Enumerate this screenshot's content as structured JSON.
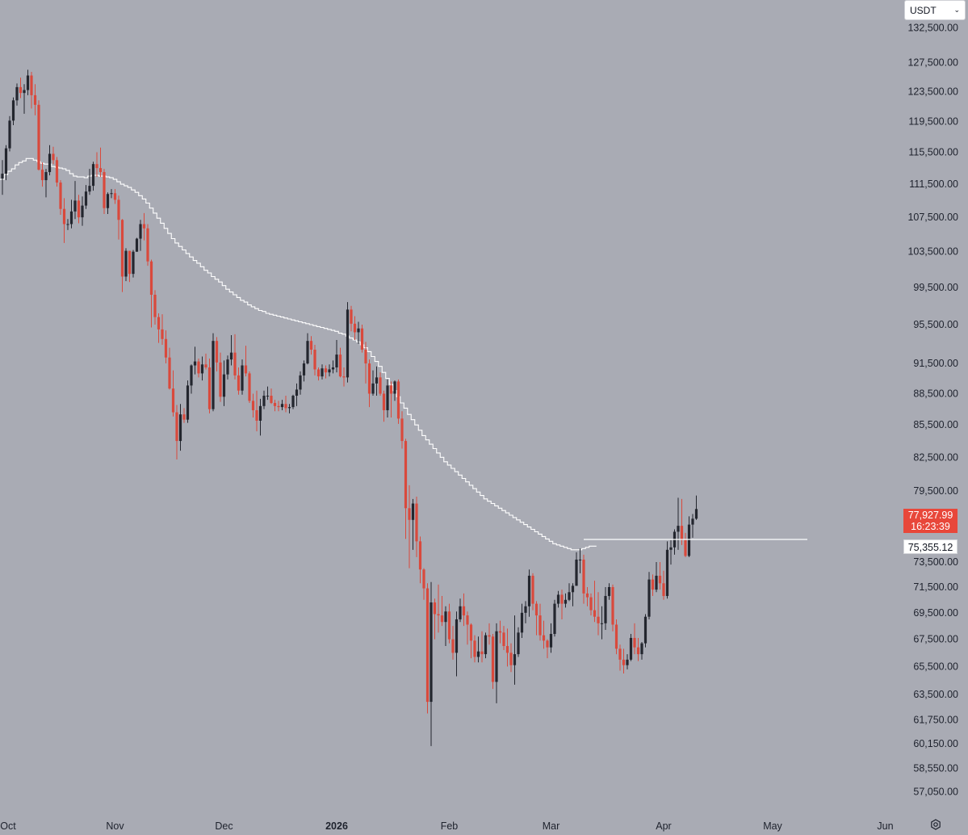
{
  "currency": {
    "label": "USDT"
  },
  "tags": {
    "last_price": "77,927.99",
    "countdown": "16:23:39",
    "level": "75,355.12"
  },
  "colors": {
    "background": "#a9abb4",
    "up": "#23262e",
    "down": "#d9493c",
    "ma_line": "#ffffff",
    "axis_text": "#1e222d"
  },
  "chart_data": {
    "type": "candlestick",
    "title": "",
    "y_scale": "log",
    "ylim": [
      56000,
      135000
    ],
    "y_ticks": [
      "132,500.00",
      "127,500.00",
      "123,500.00",
      "119,500.00",
      "115,500.00",
      "111,500.00",
      "107,500.00",
      "103,500.00",
      "99,500.00",
      "95,500.00",
      "91,500.00",
      "88,500.00",
      "85,500.00",
      "82,500.00",
      "79,500.00",
      "73,500.00",
      "71,500.00",
      "69,500.00",
      "67,500.00",
      "65,500.00",
      "63,500.00",
      "61,750.00",
      "60,150.00",
      "58,550.00",
      "57,050.00"
    ],
    "x_ticks": [
      "Oct",
      "Nov",
      "Dec",
      "2026",
      "Feb",
      "Mar",
      "Apr",
      "May",
      "Jun"
    ],
    "candles": [
      [
        112200,
        114500,
        110200,
        112800
      ],
      [
        112800,
        116400,
        112000,
        116000
      ],
      [
        116000,
        120200,
        115600,
        119600
      ],
      [
        119600,
        122700,
        119000,
        122300
      ],
      [
        122300,
        124600,
        121600,
        124100
      ],
      [
        124100,
        125400,
        122600,
        123300
      ],
      [
        123300,
        124500,
        120500,
        123700
      ],
      [
        123700,
        126500,
        123000,
        125700
      ],
      [
        125700,
        126200,
        121200,
        123000
      ],
      [
        123000,
        124500,
        120300,
        121700
      ],
      [
        121700,
        122300,
        113200,
        113300
      ],
      [
        113300,
        114200,
        111200,
        112000
      ],
      [
        112000,
        113400,
        109900,
        113000
      ],
      [
        113000,
        116400,
        112600,
        115300
      ],
      [
        115300,
        116200,
        114000,
        114500
      ],
      [
        114500,
        114900,
        111200,
        111700
      ],
      [
        111700,
        112000,
        107800,
        108500
      ],
      [
        108500,
        109800,
        104500,
        106700
      ],
      [
        106700,
        107300,
        106000,
        106700
      ],
      [
        106700,
        109600,
        106200,
        108200
      ],
      [
        108200,
        111900,
        107300,
        109500
      ],
      [
        109500,
        110200,
        106800,
        107500
      ],
      [
        107500,
        110000,
        106500,
        108900
      ],
      [
        108900,
        111400,
        108500,
        110600
      ],
      [
        110600,
        113400,
        110200,
        111300
      ],
      [
        111300,
        114300,
        110700,
        114000
      ],
      [
        114000,
        115500,
        112400,
        113500
      ],
      [
        113500,
        116100,
        112400,
        113000
      ],
      [
        113000,
        113400,
        107900,
        108600
      ],
      [
        108600,
        110500,
        107900,
        110300
      ],
      [
        110300,
        110900,
        109800,
        110400
      ],
      [
        110400,
        110900,
        109100,
        109600
      ],
      [
        109600,
        110100,
        104900,
        107200
      ],
      [
        107200,
        107300,
        99000,
        100700
      ],
      [
        100700,
        103900,
        100200,
        103600
      ],
      [
        103600,
        103600,
        100100,
        101000
      ],
      [
        101000,
        103700,
        100600,
        103500
      ],
      [
        103500,
        105100,
        103500,
        105000
      ],
      [
        105000,
        107200,
        103600,
        106700
      ],
      [
        106700,
        108000,
        104800,
        106200
      ],
      [
        106200,
        106700,
        101900,
        102400
      ],
      [
        102400,
        102600,
        95200,
        98700
      ],
      [
        98700,
        99200,
        95500,
        96300
      ],
      [
        96300,
        96700,
        93600,
        95000
      ],
      [
        95000,
        96600,
        93400,
        94000
      ],
      [
        94000,
        94900,
        91500,
        92100
      ],
      [
        92100,
        93100,
        88900,
        89000
      ],
      [
        89000,
        90800,
        86300,
        86700
      ],
      [
        86700,
        87400,
        82300,
        84000
      ],
      [
        84000,
        87500,
        83100,
        86500
      ],
      [
        86500,
        87100,
        85700,
        86000
      ],
      [
        86000,
        89800,
        85700,
        89300
      ],
      [
        89300,
        91400,
        88500,
        91300
      ],
      [
        91300,
        93200,
        90400,
        91700
      ],
      [
        91700,
        92000,
        90100,
        90500
      ],
      [
        90500,
        92200,
        89800,
        91400
      ],
      [
        91400,
        92500,
        90900,
        91100
      ],
      [
        91100,
        92000,
        86600,
        87000
      ],
      [
        87000,
        94600,
        86800,
        93800
      ],
      [
        93800,
        94200,
        90700,
        91600
      ],
      [
        91600,
        92600,
        87700,
        88200
      ],
      [
        88200,
        91800,
        87300,
        90400
      ],
      [
        90400,
        92300,
        89900,
        91900
      ],
      [
        91900,
        94400,
        91300,
        92600
      ],
      [
        92600,
        94500,
        89900,
        90300
      ],
      [
        90300,
        91100,
        88400,
        88800
      ],
      [
        88800,
        91900,
        88400,
        91300
      ],
      [
        91300,
        93300,
        90200,
        90500
      ],
      [
        90500,
        90700,
        87600,
        87800
      ],
      [
        87800,
        88500,
        86200,
        86900
      ],
      [
        86900,
        88800,
        84900,
        85900
      ],
      [
        85900,
        88000,
        84500,
        87300
      ],
      [
        87300,
        88800,
        87000,
        88300
      ],
      [
        88300,
        89200,
        87900,
        88300
      ],
      [
        88300,
        89000,
        87500,
        87600
      ],
      [
        87600,
        87900,
        86800,
        87300
      ],
      [
        87300,
        87800,
        86800,
        87200
      ],
      [
        87200,
        87900,
        86900,
        87500
      ],
      [
        87500,
        88300,
        86700,
        87100
      ],
      [
        87100,
        87500,
        86600,
        87200
      ],
      [
        87200,
        88400,
        87000,
        88300
      ],
      [
        88300,
        89500,
        87300,
        88900
      ],
      [
        88900,
        90700,
        88400,
        90300
      ],
      [
        90300,
        91800,
        89700,
        91500
      ],
      [
        91500,
        94600,
        91400,
        93800
      ],
      [
        93800,
        94300,
        92400,
        92900
      ],
      [
        92900,
        93400,
        90300,
        90900
      ],
      [
        90900,
        91100,
        89800,
        90200
      ],
      [
        90200,
        91400,
        89900,
        91000
      ],
      [
        91000,
        91300,
        90000,
        90600
      ],
      [
        90600,
        91400,
        90200,
        90900
      ],
      [
        90900,
        91800,
        90500,
        91100
      ],
      [
        91100,
        93900,
        90600,
        92400
      ],
      [
        92400,
        93100,
        90100,
        90200
      ],
      [
        90200,
        91100,
        89200,
        90100
      ],
      [
        90100,
        97900,
        89600,
        97100
      ],
      [
        97100,
        97500,
        94800,
        95600
      ],
      [
        95600,
        96400,
        93900,
        94700
      ],
      [
        94700,
        95800,
        93500,
        95100
      ],
      [
        95100,
        95500,
        92600,
        92900
      ],
      [
        92900,
        93700,
        89500,
        91500
      ],
      [
        91500,
        91900,
        87200,
        88500
      ],
      [
        88500,
        90800,
        88300,
        89500
      ],
      [
        89500,
        91200,
        88300,
        90100
      ],
      [
        90100,
        90600,
        88300,
        88500
      ],
      [
        88500,
        88800,
        85800,
        86900
      ],
      [
        86900,
        89900,
        86200,
        89300
      ],
      [
        89300,
        89700,
        86200,
        88500
      ],
      [
        88500,
        89800,
        87800,
        89700
      ],
      [
        89700,
        89900,
        85600,
        86100
      ],
      [
        86100,
        86800,
        83300,
        84000
      ],
      [
        84000,
        84200,
        75400,
        78000
      ],
      [
        78000,
        80000,
        73000,
        77000
      ],
      [
        77000,
        78800,
        74500,
        78400
      ],
      [
        78400,
        79000,
        73900,
        75200
      ],
      [
        75200,
        75600,
        71800,
        72900
      ],
      [
        72900,
        73000,
        70500,
        71400
      ],
      [
        71400,
        71800,
        62200,
        63000
      ],
      [
        63000,
        71900,
        60000,
        70300
      ],
      [
        70300,
        70600,
        67500,
        69400
      ],
      [
        69400,
        71700,
        68000,
        69300
      ],
      [
        69300,
        70800,
        68500,
        68800
      ],
      [
        68800,
        70000,
        67000,
        69600
      ],
      [
        69600,
        70200,
        67200,
        67500
      ],
      [
        67500,
        68500,
        66000,
        66500
      ],
      [
        66500,
        69600,
        64800,
        69000
      ],
      [
        69000,
        70600,
        68800,
        70000
      ],
      [
        70000,
        71000,
        68500,
        69300
      ],
      [
        69300,
        69600,
        67100,
        68600
      ],
      [
        68600,
        68700,
        66100,
        67400
      ],
      [
        67400,
        67800,
        65800,
        66200
      ],
      [
        66200,
        67700,
        65800,
        66600
      ],
      [
        66600,
        68100,
        65800,
        66400
      ],
      [
        66400,
        68000,
        66100,
        67800
      ],
      [
        67800,
        68700,
        67100,
        67700
      ],
      [
        67700,
        67900,
        63900,
        64400
      ],
      [
        64400,
        68700,
        62900,
        68100
      ],
      [
        68100,
        68900,
        67200,
        68000
      ],
      [
        68000,
        68500,
        66700,
        67000
      ],
      [
        67000,
        68300,
        65500,
        66500
      ],
      [
        66500,
        67200,
        65100,
        65600
      ],
      [
        65600,
        69300,
        64200,
        66400
      ],
      [
        66400,
        68400,
        66200,
        68000
      ],
      [
        68000,
        70200,
        67600,
        69500
      ],
      [
        69500,
        70400,
        68700,
        70000
      ],
      [
        70000,
        72900,
        69200,
        72400
      ],
      [
        72400,
        72600,
        69700,
        70200
      ],
      [
        70200,
        70400,
        67800,
        69300
      ],
      [
        69300,
        70200,
        67400,
        67800
      ],
      [
        67800,
        68900,
        66800,
        67400
      ],
      [
        67400,
        67500,
        66100,
        66900
      ],
      [
        66900,
        68700,
        66500,
        67900
      ],
      [
        67900,
        70500,
        67700,
        70200
      ],
      [
        70200,
        71200,
        69900,
        70900
      ],
      [
        70900,
        71300,
        69000,
        70200
      ],
      [
        70200,
        71000,
        69900,
        70500
      ],
      [
        70500,
        71800,
        70400,
        71100
      ],
      [
        71100,
        71800,
        70000,
        71600
      ],
      [
        71600,
        74300,
        71600,
        73700
      ],
      [
        73700,
        74600,
        72600,
        73700
      ],
      [
        73700,
        74100,
        70200,
        71000
      ],
      [
        71000,
        71500,
        70000,
        70700
      ],
      [
        70700,
        71000,
        69300,
        69700
      ],
      [
        69700,
        72000,
        68800,
        69200
      ],
      [
        69200,
        71100,
        67800,
        68700
      ],
      [
        68700,
        70000,
        67500,
        68700
      ],
      [
        68700,
        71500,
        68200,
        70800
      ],
      [
        70800,
        71800,
        70500,
        71500
      ],
      [
        71500,
        71700,
        68100,
        68600
      ],
      [
        68600,
        69000,
        66400,
        66800
      ],
      [
        66800,
        67100,
        65200,
        66000
      ],
      [
        66000,
        66800,
        65000,
        65600
      ],
      [
        65600,
        66400,
        65300,
        66000
      ],
      [
        66000,
        67900,
        65900,
        67600
      ],
      [
        67600,
        68700,
        66400,
        66900
      ],
      [
        66900,
        67600,
        65900,
        66400
      ],
      [
        66400,
        67300,
        66000,
        67200
      ],
      [
        67200,
        69400,
        66900,
        69200
      ],
      [
        69200,
        72700,
        69000,
        72100
      ],
      [
        72100,
        72500,
        70800,
        71300
      ],
      [
        71300,
        73500,
        71100,
        72400
      ],
      [
        72400,
        73500,
        71300,
        71800
      ],
      [
        71800,
        72800,
        70500,
        70800
      ],
      [
        70800,
        75200,
        70600,
        74500
      ],
      [
        74500,
        75300,
        73300,
        74700
      ],
      [
        74700,
        76200,
        74100,
        76000
      ],
      [
        76000,
        78900,
        74500,
        76500
      ],
      [
        76500,
        78800,
        74900,
        75300
      ],
      [
        75300,
        75900,
        73900,
        74000
      ],
      [
        74000,
        77300,
        73900,
        76600
      ],
      [
        76600,
        77500,
        75500,
        77100
      ],
      [
        77100,
        79100,
        77000,
        77928
      ]
    ],
    "ma_line": [
      112100,
      112700,
      113100,
      113400,
      113900,
      114200,
      114400,
      114700,
      114700,
      114500,
      114300,
      114100,
      114000,
      114000,
      113700,
      113600,
      113500,
      113400,
      113200,
      112800,
      112500,
      112400,
      112400,
      112300,
      112500,
      112600,
      112600,
      112500,
      112500,
      112400,
      112300,
      112100,
      111800,
      111500,
      111300,
      111100,
      110800,
      110500,
      110100,
      109700,
      109200,
      108600,
      108000,
      107400,
      106800,
      106200,
      105600,
      105000,
      104500,
      104100,
      103700,
      103300,
      102900,
      102500,
      102200,
      101800,
      101400,
      101100,
      100700,
      100400,
      100100,
      99700,
      99300,
      99000,
      98700,
      98400,
      98100,
      97900,
      97600,
      97400,
      97200,
      97000,
      96900,
      96700,
      96600,
      96500,
      96400,
      96300,
      96200,
      96100,
      96000,
      95900,
      95800,
      95700,
      95600,
      95500,
      95400,
      95300,
      95200,
      95100,
      95000,
      94900,
      94800,
      94600,
      94500,
      94300,
      94100,
      93900,
      93700,
      93400,
      93100,
      92700,
      92200,
      91700,
      91200,
      90600,
      90000,
      89400,
      88800,
      88200,
      87600,
      87100,
      86500,
      86000,
      85500,
      85000,
      84500,
      84100,
      83700,
      83300,
      82900,
      82500,
      82100,
      81800,
      81500,
      81200,
      80900,
      80600,
      80300,
      80000,
      79700,
      79400,
      79100,
      78800,
      78600,
      78400,
      78200,
      78000,
      77800,
      77600,
      77400,
      77200,
      77000,
      76800,
      76600,
      76400,
      76200,
      76000,
      75800,
      75600,
      75400,
      75200,
      75000,
      74900,
      74800,
      74700,
      74600,
      74500,
      74500,
      74500,
      74600,
      74700,
      74800,
      74800
    ],
    "hline": {
      "price": 75355.12
    },
    "last_price": 77927.99
  }
}
